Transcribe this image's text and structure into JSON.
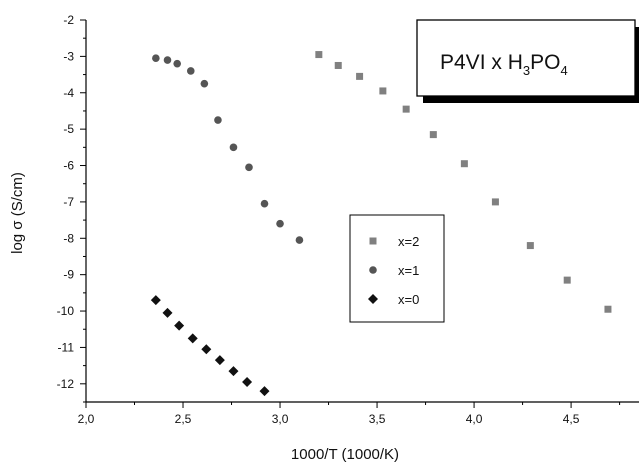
{
  "chart_data": {
    "type": "scatter",
    "title_parts": [
      "P4VI x H",
      "3",
      "PO",
      "4"
    ],
    "xlabel": "1000/T (1000/K)",
    "ylabel": "log  σ  (S/cm)",
    "xlim": [
      2.0,
      4.85
    ],
    "ylim": [
      -12.5,
      -2
    ],
    "xticks": [
      2.0,
      2.5,
      3.0,
      3.5,
      4.0,
      4.5
    ],
    "xtick_labels": [
      "2,0",
      "2,5",
      "3,0",
      "3,5",
      "4,0",
      "4,5"
    ],
    "yticks": [
      -2,
      -3,
      -4,
      -5,
      -6,
      -7,
      -8,
      -9,
      -10,
      -11,
      -12
    ],
    "ytick_labels": [
      "-2",
      "-3",
      "-4",
      "-5",
      "-6",
      "-7",
      "-8",
      "-9",
      "-10",
      "-11",
      "-12"
    ],
    "legend_position": "center-right",
    "series": [
      {
        "name": "x=2",
        "marker": "square",
        "color": "#808080",
        "x": [
          3.2,
          3.3,
          3.41,
          3.53,
          3.65,
          3.79,
          3.95,
          4.11,
          4.29,
          4.48,
          4.69
        ],
        "y": [
          -2.95,
          -3.25,
          -3.55,
          -3.95,
          -4.45,
          -5.15,
          -5.95,
          -7.0,
          -8.2,
          -9.15,
          -9.95
        ]
      },
      {
        "name": "x=1",
        "marker": "circle",
        "color": "#555555",
        "x": [
          2.36,
          2.42,
          2.47,
          2.54,
          2.61,
          2.68,
          2.76,
          2.84,
          2.92,
          3.0,
          3.1
        ],
        "y": [
          -3.05,
          -3.1,
          -3.2,
          -3.4,
          -3.75,
          -4.75,
          -5.5,
          -6.05,
          -7.05,
          -7.6,
          -8.05
        ]
      },
      {
        "name": "x=0",
        "marker": "diamond",
        "color": "#111111",
        "x": [
          2.36,
          2.42,
          2.48,
          2.55,
          2.62,
          2.69,
          2.76,
          2.83,
          2.92
        ],
        "y": [
          -9.7,
          -10.05,
          -10.4,
          -10.75,
          -11.05,
          -11.35,
          -11.65,
          -11.95,
          -12.2
        ]
      }
    ]
  }
}
